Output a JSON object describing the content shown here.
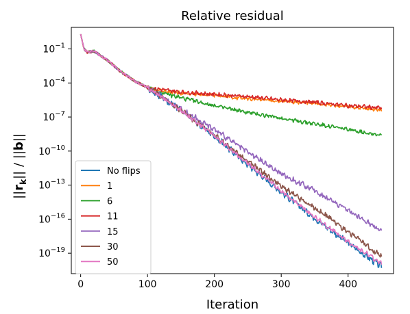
{
  "chart_data": {
    "type": "line",
    "title": "Relative residual",
    "xlabel": "Iteration",
    "ylabel": "||r_k|| / ||b||",
    "ylabel_parts": {
      "open": "||",
      "r": "r",
      "k": "k",
      "close": "|| / ||",
      "b": "b",
      "end": "||"
    },
    "xlim": [
      -14,
      468
    ],
    "ylim_log10": [
      -20.8,
      0.9
    ],
    "y_scale": "log",
    "legend_position": "lower left",
    "grid": false,
    "x_ticks": [
      {
        "value": 0,
        "label": "0"
      },
      {
        "value": 100,
        "label": "100"
      },
      {
        "value": 200,
        "label": "200"
      },
      {
        "value": 300,
        "label": "300"
      },
      {
        "value": 400,
        "label": "400"
      }
    ],
    "y_ticks": [
      {
        "exp": -1,
        "base": "10",
        "sup": "−1"
      },
      {
        "exp": -4,
        "base": "10",
        "sup": "−4"
      },
      {
        "exp": -7,
        "base": "10",
        "sup": "−7"
      },
      {
        "exp": -10,
        "base": "10",
        "sup": "−10"
      },
      {
        "exp": -13,
        "base": "10",
        "sup": "−13"
      },
      {
        "exp": -16,
        "base": "10",
        "sup": "−16"
      },
      {
        "exp": -19,
        "base": "10",
        "sup": "−19"
      }
    ],
    "series": [
      {
        "name": "No flips",
        "color": "#1f77b4",
        "log10_points": [
          [
            0,
            0.3
          ],
          [
            5,
            -1.0
          ],
          [
            10,
            -1.3
          ],
          [
            20,
            -1.2
          ],
          [
            40,
            -2.0
          ],
          [
            60,
            -3.0
          ],
          [
            80,
            -3.8
          ],
          [
            100,
            -4.4
          ],
          [
            150,
            -6.4
          ],
          [
            200,
            -8.7
          ],
          [
            250,
            -11.2
          ],
          [
            300,
            -13.6
          ],
          [
            350,
            -15.9
          ],
          [
            400,
            -18.1
          ],
          [
            450,
            -20.2
          ]
        ],
        "end_value_log10": -20.3
      },
      {
        "name": "1",
        "color": "#ff7f0e",
        "log10_points": [
          [
            0,
            0.3
          ],
          [
            5,
            -1.0
          ],
          [
            10,
            -1.3
          ],
          [
            20,
            -1.2
          ],
          [
            40,
            -2.0
          ],
          [
            60,
            -3.0
          ],
          [
            80,
            -3.8
          ],
          [
            100,
            -4.4
          ],
          [
            110,
            -4.6
          ],
          [
            150,
            -4.9
          ],
          [
            200,
            -5.1
          ],
          [
            250,
            -5.4
          ],
          [
            300,
            -5.6
          ],
          [
            350,
            -5.8
          ],
          [
            400,
            -6.1
          ],
          [
            450,
            -6.4
          ]
        ],
        "end_value_log10": -6.5
      },
      {
        "name": "6",
        "color": "#2ca02c",
        "log10_points": [
          [
            0,
            0.3
          ],
          [
            5,
            -1.0
          ],
          [
            10,
            -1.3
          ],
          [
            20,
            -1.2
          ],
          [
            40,
            -2.0
          ],
          [
            60,
            -3.0
          ],
          [
            80,
            -3.8
          ],
          [
            100,
            -4.4
          ],
          [
            130,
            -5.0
          ],
          [
            150,
            -5.3
          ],
          [
            200,
            -6.0
          ],
          [
            250,
            -6.6
          ],
          [
            300,
            -7.1
          ],
          [
            350,
            -7.6
          ],
          [
            400,
            -8.1
          ],
          [
            450,
            -8.6
          ]
        ],
        "end_value_log10": -8.6
      },
      {
        "name": "11",
        "color": "#d62728",
        "log10_points": [
          [
            0,
            0.3
          ],
          [
            5,
            -1.0
          ],
          [
            10,
            -1.3
          ],
          [
            20,
            -1.2
          ],
          [
            40,
            -2.0
          ],
          [
            60,
            -3.0
          ],
          [
            80,
            -3.8
          ],
          [
            100,
            -4.4
          ],
          [
            110,
            -4.5
          ],
          [
            150,
            -4.8
          ],
          [
            200,
            -5.0
          ],
          [
            250,
            -5.2
          ],
          [
            300,
            -5.5
          ],
          [
            350,
            -5.7
          ],
          [
            400,
            -6.0
          ],
          [
            450,
            -6.2
          ]
        ],
        "end_value_log10": -6.3
      },
      {
        "name": "15",
        "color": "#9467bd",
        "log10_points": [
          [
            0,
            0.3
          ],
          [
            5,
            -1.0
          ],
          [
            10,
            -1.3
          ],
          [
            20,
            -1.2
          ],
          [
            40,
            -2.0
          ],
          [
            60,
            -3.0
          ],
          [
            80,
            -3.8
          ],
          [
            100,
            -4.4
          ],
          [
            150,
            -6.3
          ],
          [
            200,
            -8.1
          ],
          [
            250,
            -10.1
          ],
          [
            300,
            -12.0
          ],
          [
            350,
            -13.5
          ],
          [
            400,
            -15.2
          ],
          [
            450,
            -17.0
          ]
        ],
        "end_value_log10": -17.0
      },
      {
        "name": "30",
        "color": "#8c564b",
        "log10_points": [
          [
            0,
            0.3
          ],
          [
            5,
            -1.0
          ],
          [
            10,
            -1.3
          ],
          [
            20,
            -1.2
          ],
          [
            40,
            -2.0
          ],
          [
            60,
            -3.0
          ],
          [
            80,
            -3.8
          ],
          [
            100,
            -4.4
          ],
          [
            150,
            -6.4
          ],
          [
            200,
            -8.6
          ],
          [
            250,
            -10.9
          ],
          [
            300,
            -13.1
          ],
          [
            350,
            -15.0
          ],
          [
            400,
            -17.1
          ],
          [
            450,
            -19.3
          ]
        ],
        "end_value_log10": -19.3
      },
      {
        "name": "50",
        "color": "#e377c2",
        "log10_points": [
          [
            0,
            0.3
          ],
          [
            5,
            -1.0
          ],
          [
            10,
            -1.3
          ],
          [
            20,
            -1.2
          ],
          [
            40,
            -2.0
          ],
          [
            60,
            -3.0
          ],
          [
            80,
            -3.8
          ],
          [
            100,
            -4.4
          ],
          [
            150,
            -6.4
          ],
          [
            200,
            -8.7
          ],
          [
            250,
            -11.1
          ],
          [
            300,
            -13.5
          ],
          [
            350,
            -15.8
          ],
          [
            400,
            -18.0
          ],
          [
            450,
            -19.9
          ]
        ],
        "end_value_log10": -20.0
      }
    ]
  }
}
